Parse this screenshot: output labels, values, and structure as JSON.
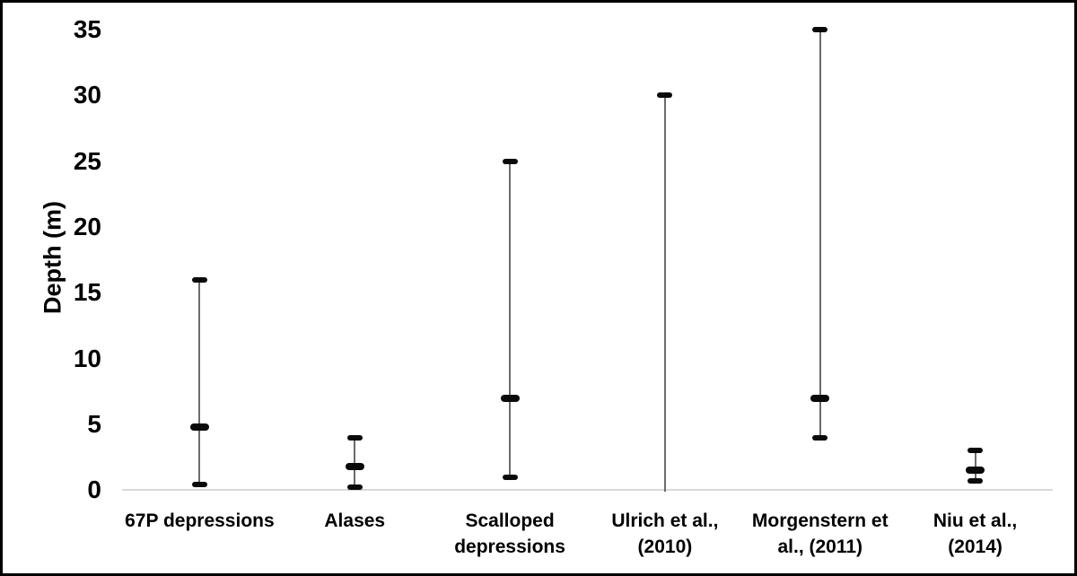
{
  "chart_data": {
    "type": "range-bar",
    "title": "",
    "xlabel": "",
    "ylabel": "Depth (m)",
    "ylim": [
      0,
      35
    ],
    "yticks": [
      0,
      5,
      10,
      15,
      20,
      25,
      30,
      35
    ],
    "grid": false,
    "legend": false,
    "categories": [
      "67P depressions",
      "Alases",
      "Scalloped depressions",
      "Ulrich et al., (2010)",
      "Morgenstern et al., (2011)",
      "Niu et al., (2014)"
    ],
    "series": [
      {
        "category": "67P depressions",
        "label_lines": [
          "67P depressions"
        ],
        "min": 0.4,
        "mean": 4.8,
        "max": 16,
        "caps": "both"
      },
      {
        "category": "Alases",
        "label_lines": [
          "Alases"
        ],
        "min": 0.25,
        "mean": 1.8,
        "max": 4,
        "caps": "both"
      },
      {
        "category": "Scalloped depressions",
        "label_lines": [
          "Scalloped",
          "depressions"
        ],
        "min": 1,
        "mean": 7,
        "max": 25,
        "caps": "both"
      },
      {
        "category": "Ulrich et al., (2010)",
        "label_lines": [
          "Ulrich et al.,",
          "(2010)"
        ],
        "min": 0,
        "mean": null,
        "max": 30,
        "caps": "top"
      },
      {
        "category": "Morgenstern et al., (2011)",
        "label_lines": [
          "Morgenstern et",
          "al., (2011)"
        ],
        "min": 4,
        "mean": 7,
        "max": 35,
        "caps": "both"
      },
      {
        "category": "Niu et al., (2014)",
        "label_lines": [
          "Niu et al.,",
          "(2014)"
        ],
        "min": 0.7,
        "mean": 1.5,
        "max": 3,
        "caps": "both"
      }
    ],
    "colors": {
      "range_line": "#6b6b6b",
      "cap": "#0a0a0a",
      "mean_marker": "#0a0a0a",
      "axis_line": "#d9d9d9",
      "text": "#000000",
      "background": "#ffffff",
      "border": "#000000"
    }
  }
}
